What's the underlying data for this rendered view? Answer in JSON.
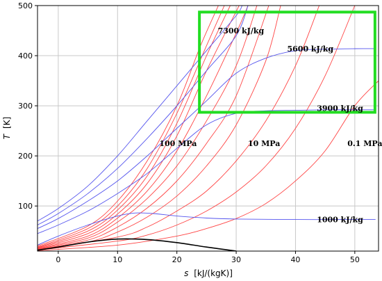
{
  "chart_data": {
    "type": "line",
    "xlabel_var": "s",
    "xlabel_unit": "[kJ/(kgK)]",
    "ylabel_var": "T",
    "ylabel_unit": "[K]",
    "xlim": [
      -3.5,
      54
    ],
    "ylim": [
      10,
      500
    ],
    "x_ticks": [
      0,
      10,
      20,
      30,
      40,
      50
    ],
    "y_ticks": [
      100,
      200,
      300,
      400,
      500
    ],
    "grid": true,
    "colors": {
      "isobar": "#ff4444",
      "isenthalp": "#5555ee",
      "saturation": "#000000",
      "highlight": "#22dd22"
    },
    "annotations": [
      {
        "text": "7300 kJ/kg",
        "x": 30.8,
        "y": 450
      },
      {
        "text": "5600 kJ/kg",
        "x": 42.5,
        "y": 414
      },
      {
        "text": "3900 kJ/kg",
        "x": 47.5,
        "y": 295
      },
      {
        "text": "1000 kJ/kg",
        "x": 47.5,
        "y": 73
      },
      {
        "text": "100 MPa",
        "x": 20.2,
        "y": 225
      },
      {
        "text": "10 MPa",
        "x": 34.7,
        "y": 225
      },
      {
        "text": "0.1 MPa",
        "x": 51.7,
        "y": 225
      }
    ],
    "highlight_box": {
      "x": [
        23.8,
        53.4
      ],
      "y": [
        287,
        487
      ]
    },
    "isobar_series": [
      {
        "x": [
          -3.5,
          5,
          10,
          15,
          20,
          24,
          27
        ],
        "y": [
          20,
          60,
          110,
          190,
          300,
          420,
          500
        ]
      },
      {
        "x": [
          -3.5,
          5,
          10,
          15,
          20,
          25,
          28
        ],
        "y": [
          18,
          55,
          100,
          175,
          285,
          420,
          500
        ]
      },
      {
        "x": [
          -3.5,
          5,
          10,
          15,
          20,
          25,
          29
        ],
        "y": [
          17,
          50,
          92,
          160,
          265,
          400,
          500
        ]
      },
      {
        "x": [
          -3.5,
          5,
          10,
          15,
          20,
          25,
          30.5
        ],
        "y": [
          16,
          45,
          84,
          145,
          240,
          370,
          500
        ]
      },
      {
        "x": [
          -3.5,
          5,
          10,
          15,
          20,
          25,
          30,
          32
        ],
        "y": [
          15,
          40,
          76,
          130,
          210,
          320,
          445,
          500
        ]
      },
      {
        "x": [
          -3.5,
          5,
          10,
          15,
          20,
          25,
          30,
          33.5
        ],
        "y": [
          14,
          36,
          68,
          115,
          180,
          270,
          380,
          500
        ]
      },
      {
        "x": [
          -3.5,
          5,
          10,
          15,
          20,
          25,
          30,
          35.5
        ],
        "y": [
          13,
          32,
          58,
          96,
          150,
          225,
          320,
          500
        ]
      },
      {
        "x": [
          -3.5,
          5,
          10,
          15,
          20,
          25,
          30,
          35,
          37.5
        ],
        "y": [
          13,
          28,
          48,
          78,
          120,
          180,
          262,
          390,
          500
        ]
      },
      {
        "x": [
          -3.5,
          10,
          15,
          20,
          25,
          30,
          35,
          40,
          44
        ],
        "y": [
          12,
          38,
          58,
          90,
          130,
          190,
          270,
          380,
          500
        ]
      },
      {
        "x": [
          -3.5,
          10,
          15,
          20,
          25,
          30,
          35,
          40,
          45,
          50
        ],
        "y": [
          12,
          30,
          42,
          62,
          90,
          128,
          180,
          255,
          360,
          500
        ]
      },
      {
        "x": [
          -3.5,
          10,
          20,
          25,
          30,
          35,
          40,
          45,
          50,
          54
        ],
        "y": [
          11,
          22,
          40,
          55,
          75,
          105,
          150,
          210,
          300,
          350
        ]
      }
    ],
    "isenthalp_series": [
      {
        "x": [
          -3.5,
          0,
          5,
          10,
          15,
          20,
          25,
          30,
          31
        ],
        "y": [
          70,
          95,
          140,
          200,
          270,
          340,
          410,
          480,
          500
        ]
      },
      {
        "x": [
          -3.5,
          0,
          5,
          10,
          15,
          20,
          25,
          30,
          32
        ],
        "y": [
          62,
          85,
          125,
          175,
          235,
          300,
          370,
          440,
          500
        ]
      },
      {
        "x": [
          -3.5,
          0,
          5,
          10,
          15,
          20,
          25,
          30,
          35,
          40,
          45,
          50,
          53.5
        ],
        "y": [
          55,
          75,
          110,
          150,
          200,
          255,
          310,
          365,
          395,
          410,
          413,
          414,
          414
        ]
      },
      {
        "x": [
          -3.5,
          0,
          5,
          10,
          15,
          20,
          25,
          30,
          35,
          40,
          45,
          50,
          53.5
        ],
        "y": [
          45,
          62,
          90,
          125,
          165,
          215,
          262,
          285,
          290,
          291,
          292,
          292,
          292
        ]
      },
      {
        "x": [
          -3.5,
          0,
          5,
          10,
          13,
          16,
          20,
          25,
          30,
          40,
          50,
          53.5
        ],
        "y": [
          22,
          40,
          62,
          80,
          86,
          85,
          80,
          76,
          74,
          73,
          73,
          73
        ]
      }
    ],
    "saturation_series": [
      {
        "x": [
          -3.5,
          0,
          5,
          10,
          15,
          20,
          25,
          30
        ],
        "y": [
          12,
          18,
          28,
          34,
          33,
          27,
          18,
          10
        ]
      }
    ]
  }
}
